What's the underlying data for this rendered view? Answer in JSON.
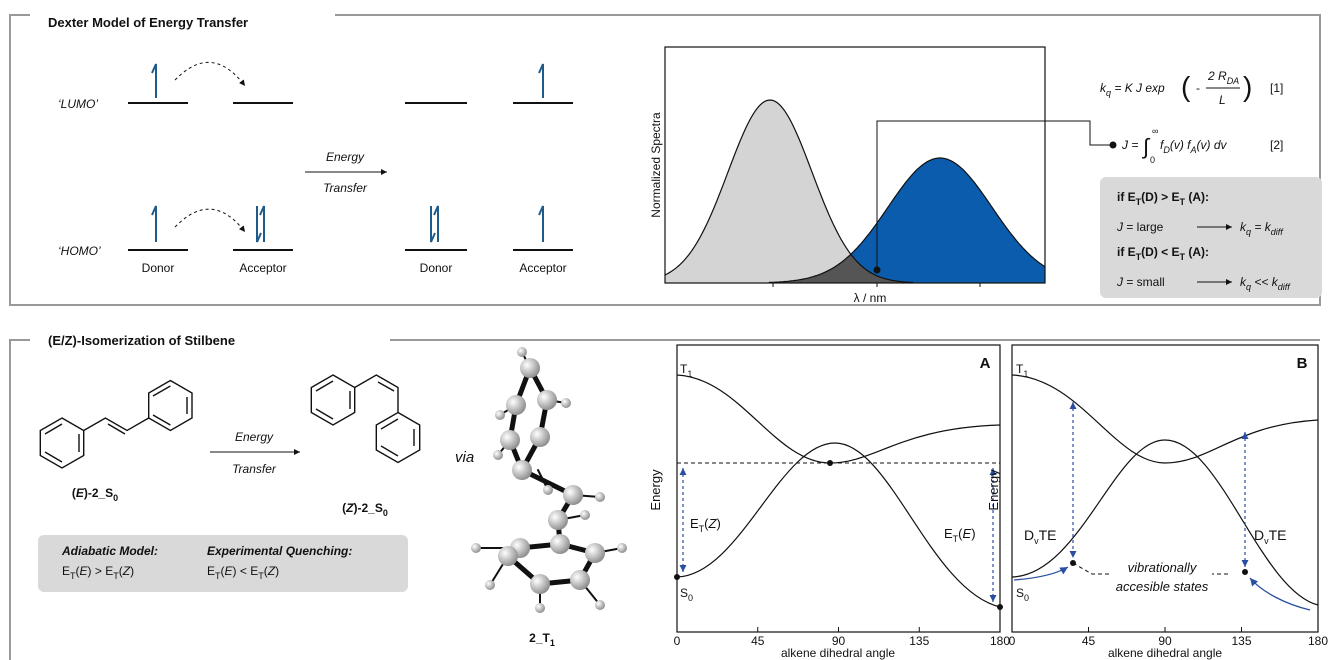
{
  "dexter": {
    "title": "Dexter Model of Energy Transfer",
    "lumo": "‘LUMO’",
    "homo": "‘HOMO’",
    "labels": [
      "Donor",
      "Acceptor",
      "Donor",
      "Acceptor"
    ],
    "arrow": {
      "top": "Energy",
      "bottom": "Transfer"
    },
    "spectra": {
      "y_label": "Normalized Spectra",
      "x_label": "λ / nm"
    },
    "equation_1": {
      "lhs": [
        "k",
        "q",
        " = ",
        "K J exp"
      ],
      "open": "(",
      "minus": "-",
      "numerator": [
        "2 R",
        "DA"
      ],
      "denominator": "L",
      "close": ")",
      "number": "[1]"
    },
    "equation_2": {
      "lhs": "J = ",
      "integral": "∫",
      "upper": "∞",
      "lower": "0",
      "integrand": [
        "f",
        "D",
        "(v) ",
        "f",
        "A",
        "(v) dv"
      ],
      "number": "[2]"
    },
    "cases": [
      {
        "condition": [
          "if E",
          "T",
          "(D) > E",
          "T",
          " (A):"
        ],
        "result": [
          "J",
          " = large",
          "k",
          "q",
          " = ",
          "k",
          "diff"
        ]
      },
      {
        "condition": [
          "if E",
          "T",
          "(D) < E",
          "T",
          " (A):"
        ],
        "result": [
          "J",
          " = small",
          "k",
          "q",
          " << ",
          "k",
          "diff"
        ]
      }
    ]
  },
  "stilbene": {
    "title": "(E/Z)-Isomerization of Stilbene",
    "reactant": [
      "(",
      "E",
      ")-2_S",
      "0"
    ],
    "product": [
      "(",
      "Z",
      ")-2_S",
      "0"
    ],
    "arrow": {
      "top": "Energy",
      "bottom": "Transfer"
    },
    "via": "via",
    "intermediate": [
      "2_T",
      "1"
    ],
    "box": {
      "adiabatic": {
        "heading": "Adiabatic Model:",
        "relation": [
          "E",
          "T",
          "(",
          "E",
          ") > E",
          "T",
          "(",
          "Z",
          ")"
        ]
      },
      "experimental": {
        "heading": "Experimental Quenching:",
        "relation": [
          "E",
          "T",
          "(",
          "E",
          ") < E",
          "T",
          "(",
          "Z",
          ")"
        ]
      }
    },
    "plot_a": {
      "label": "A",
      "t1": [
        "T",
        "1"
      ],
      "s0": [
        "S",
        "0"
      ],
      "y_label": "Energy",
      "x_label": "alkene dihedral angle",
      "xticks": [
        0,
        45,
        90,
        135,
        180
      ],
      "gap_z": [
        "E",
        "T",
        "(",
        "Z",
        ")"
      ],
      "gap_e": [
        "E",
        "T",
        "(",
        "E",
        ")"
      ]
    },
    "plot_b": {
      "label": "B",
      "t1": [
        "T",
        "1"
      ],
      "s0": [
        "S",
        "0"
      ],
      "y_label": "Energy",
      "x_label": "alkene dihedral angle",
      "xticks": [
        0,
        45,
        90,
        135,
        180
      ],
      "gap_left": [
        "D",
        "v",
        "TE"
      ],
      "gap_right": [
        "D",
        "v",
        "TE"
      ],
      "states": [
        "vibrationally",
        "accesible states"
      ]
    }
  }
}
